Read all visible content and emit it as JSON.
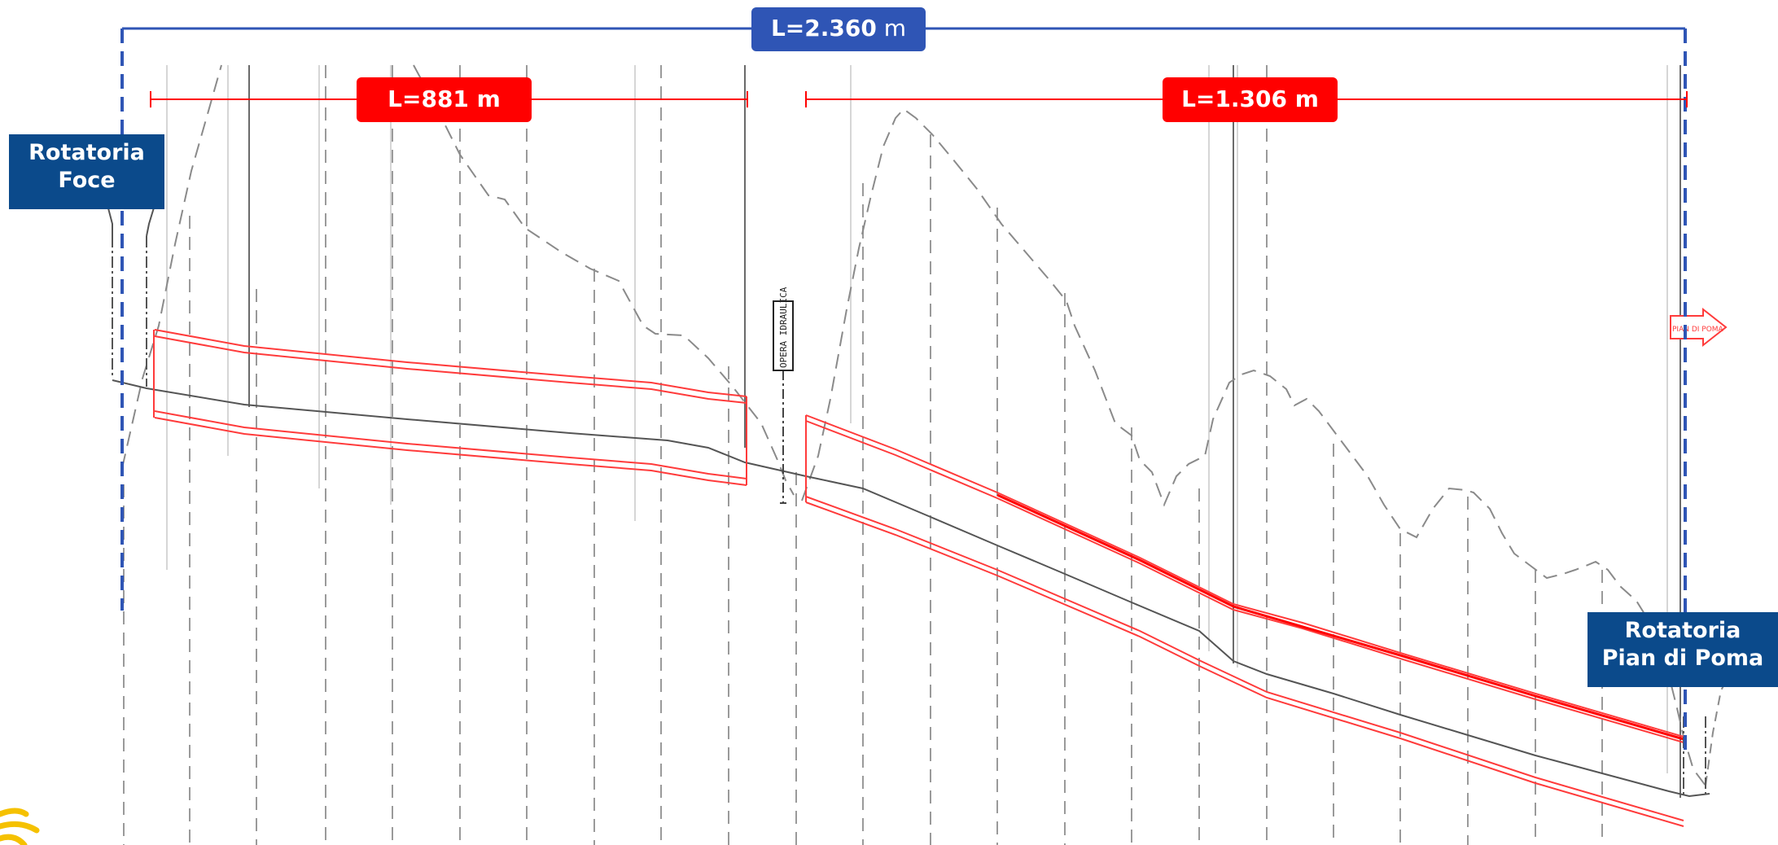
{
  "dimensions": {
    "total": {
      "value": "L=2.360",
      "unit": " m"
    },
    "segment_1": {
      "label": "L=881 m"
    },
    "segment_2": {
      "label": "L=1.306 m"
    }
  },
  "roundabouts": {
    "start": {
      "line1": "Rotatoria",
      "line2": "Foce"
    },
    "end": {
      "line1": "Rotatoria",
      "line2": "Pian di Poma"
    }
  },
  "annotations": {
    "culvert": "OPERA IDRAULICA",
    "direction_arrow": "PIAN DI POMA"
  },
  "colors": {
    "total_dimension": "#2f55b5",
    "segment_dimension": "#ff0000",
    "roundabout_box": "#0b4a8b",
    "tunnel_outline": "#ff3b3b",
    "ground_profile": "#8a8a8a",
    "road_axis": "#555555"
  },
  "icons": {
    "logo": "sun-logo-icon",
    "arrow": "arrow-right-icon"
  }
}
